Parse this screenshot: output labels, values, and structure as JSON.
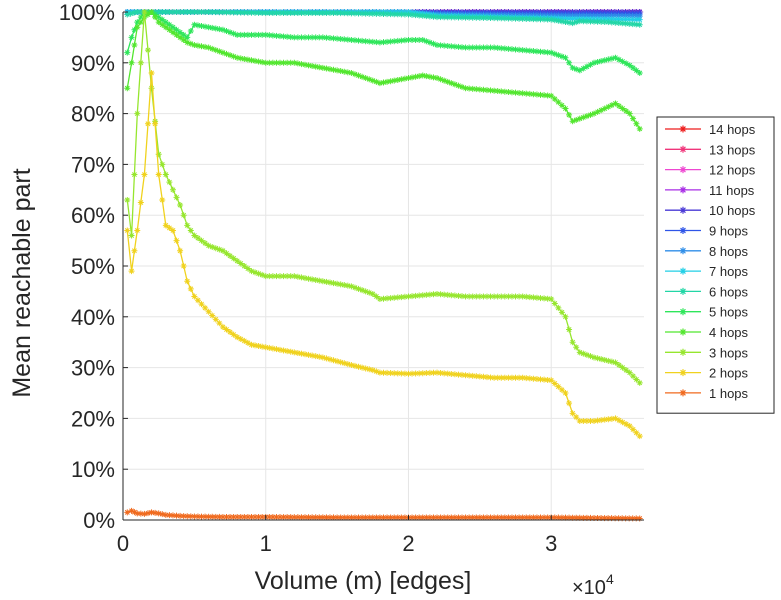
{
  "chart_data": {
    "type": "line",
    "title": "",
    "xlabel": "Volume (m) [edges]",
    "ylabel": "Mean reachable part",
    "x_exponent_base": "×10",
    "x_exponent": "4",
    "xlim": [
      0,
      3.65
    ],
    "ylim": [
      0,
      100
    ],
    "x_ticks": [
      0,
      1,
      2,
      3
    ],
    "x_tick_labels": [
      "0",
      "1",
      "2",
      "3"
    ],
    "y_ticks": [
      0,
      10,
      20,
      30,
      40,
      50,
      60,
      70,
      80,
      90,
      100
    ],
    "y_tick_labels": [
      "0%",
      "10%",
      "20%",
      "30%",
      "40%",
      "50%",
      "60%",
      "70%",
      "80%",
      "90%",
      "100%"
    ],
    "grid": true,
    "legend_position": "right",
    "series": [
      {
        "name": "14 hops",
        "color": "#ee1c1c",
        "x": [
          0.03,
          0.2,
          1.0,
          2.0,
          3.0,
          3.62
        ],
        "y": [
          100,
          100,
          100,
          100,
          100,
          100
        ]
      },
      {
        "name": "13 hops",
        "color": "#f0357a",
        "x": [
          0.03,
          0.2,
          1.0,
          2.0,
          3.0,
          3.62
        ],
        "y": [
          100,
          100,
          100,
          100,
          100,
          100
        ]
      },
      {
        "name": "12 hops",
        "color": "#ee48d2",
        "x": [
          0.03,
          0.2,
          1.0,
          2.0,
          3.0,
          3.62
        ],
        "y": [
          100,
          100,
          100,
          100,
          100,
          100
        ]
      },
      {
        "name": "11 hops",
        "color": "#a82ee6",
        "x": [
          0.03,
          0.2,
          1.0,
          2.0,
          3.0,
          3.62
        ],
        "y": [
          100,
          100,
          100,
          100,
          100,
          100
        ]
      },
      {
        "name": "10 hops",
        "color": "#4a3ad6",
        "x": [
          0.03,
          0.2,
          1.0,
          2.0,
          2.2,
          3.0,
          3.62
        ],
        "y": [
          100,
          100,
          100,
          100,
          100,
          100,
          100
        ]
      },
      {
        "name": "9 hops",
        "color": "#2f55e8",
        "x": [
          0.03,
          0.2,
          1.0,
          2.0,
          2.2,
          3.0,
          3.62
        ],
        "y": [
          100,
          100,
          100,
          100,
          99.8,
          99.7,
          99.6
        ]
      },
      {
        "name": "8 hops",
        "color": "#2f8ee8",
        "x": [
          0.03,
          0.2,
          1.0,
          2.0,
          2.2,
          3.0,
          3.62
        ],
        "y": [
          100,
          100,
          100,
          100,
          99.6,
          99.3,
          99.2
        ]
      },
      {
        "name": "7 hops",
        "color": "#22cfe6",
        "x": [
          0.03,
          0.2,
          1.0,
          2.0,
          2.2,
          3.0,
          3.1,
          3.62
        ],
        "y": [
          100,
          100,
          100,
          100,
          99.3,
          98.8,
          98.7,
          98.5
        ]
      },
      {
        "name": "6 hops",
        "color": "#22d6a6",
        "x": [
          0.03,
          0.1,
          0.2,
          0.3,
          0.6,
          1.0,
          1.5,
          2.0,
          2.2,
          2.6,
          3.0,
          3.15,
          3.2,
          3.4,
          3.62
        ],
        "y": [
          99.5,
          100,
          100,
          100,
          100,
          99.8,
          99.8,
          99.5,
          99.0,
          98.8,
          98.5,
          97.8,
          98.2,
          98.0,
          97.5
        ]
      },
      {
        "name": "5 hops",
        "color": "#2ee65a",
        "x": [
          0.03,
          0.06,
          0.1,
          0.15,
          0.2,
          0.25,
          0.3,
          0.35,
          0.4,
          0.45,
          0.5,
          0.6,
          0.7,
          0.8,
          1.0,
          1.2,
          1.4,
          1.6,
          1.8,
          2.0,
          2.1,
          2.2,
          2.4,
          2.6,
          2.8,
          3.0,
          3.1,
          3.15,
          3.2,
          3.3,
          3.45,
          3.55,
          3.62
        ],
        "y": [
          92,
          95,
          98,
          100,
          100,
          99,
          98,
          97,
          96,
          95,
          97.5,
          97,
          96.5,
          95.5,
          95.5,
          95,
          95,
          94.5,
          94,
          94.5,
          94.5,
          93.5,
          93,
          93,
          92.5,
          92,
          91,
          89,
          88.5,
          90,
          91,
          89.5,
          88
        ]
      },
      {
        "name": "4 hops",
        "color": "#52e62e",
        "x": [
          0.03,
          0.06,
          0.1,
          0.15,
          0.2,
          0.25,
          0.3,
          0.35,
          0.4,
          0.45,
          0.5,
          0.6,
          0.7,
          0.8,
          0.9,
          1.0,
          1.2,
          1.4,
          1.6,
          1.8,
          2.0,
          2.1,
          2.2,
          2.4,
          2.6,
          2.8,
          3.0,
          3.1,
          3.15,
          3.2,
          3.3,
          3.45,
          3.55,
          3.62
        ],
        "y": [
          85,
          90,
          97,
          99,
          100,
          98,
          97,
          96,
          95,
          94,
          93.5,
          93,
          92,
          91,
          90.5,
          90,
          90,
          89,
          88,
          86,
          87,
          87.5,
          87,
          85,
          84.5,
          84,
          83.5,
          81,
          78.5,
          79,
          80,
          82,
          80,
          77
        ]
      },
      {
        "name": "3 hops",
        "color": "#96e62e",
        "x": [
          0.03,
          0.06,
          0.1,
          0.15,
          0.2,
          0.25,
          0.3,
          0.35,
          0.4,
          0.45,
          0.5,
          0.6,
          0.7,
          0.8,
          0.9,
          1.0,
          1.2,
          1.4,
          1.6,
          1.75,
          1.8,
          2.0,
          2.2,
          2.4,
          2.6,
          2.8,
          3.0,
          3.1,
          3.15,
          3.2,
          3.3,
          3.45,
          3.55,
          3.62
        ],
        "y": [
          63,
          56,
          80,
          100,
          85,
          72,
          68,
          65,
          62,
          58,
          56,
          54,
          53,
          51,
          49,
          48,
          48,
          47,
          46,
          44.5,
          43.5,
          44,
          44.5,
          44,
          44,
          44,
          43.5,
          40,
          35,
          33,
          32,
          31,
          29,
          27
        ]
      },
      {
        "name": "2 hops",
        "color": "#f0d21e",
        "x": [
          0.03,
          0.06,
          0.1,
          0.15,
          0.2,
          0.25,
          0.3,
          0.35,
          0.4,
          0.45,
          0.5,
          0.6,
          0.7,
          0.8,
          0.9,
          1.0,
          1.2,
          1.4,
          1.6,
          1.75,
          1.8,
          2.0,
          2.2,
          2.4,
          2.6,
          2.8,
          3.0,
          3.1,
          3.15,
          3.2,
          3.3,
          3.45,
          3.55,
          3.62
        ],
        "y": [
          57,
          49,
          57,
          68,
          88,
          68,
          58,
          57,
          53,
          47,
          44,
          41,
          38,
          36,
          34.5,
          34,
          33,
          32,
          30.5,
          29.5,
          29,
          28.8,
          29,
          28.5,
          28,
          28,
          27.5,
          25,
          21,
          19.5,
          19.5,
          20,
          18.5,
          16.5
        ]
      },
      {
        "name": "1 hops",
        "color": "#f06a1e",
        "x": [
          0.03,
          0.06,
          0.1,
          0.15,
          0.2,
          0.25,
          0.3,
          0.4,
          0.5,
          0.7,
          1.0,
          1.5,
          2.0,
          2.5,
          3.0,
          3.3,
          3.62
        ],
        "y": [
          1.5,
          1.8,
          1.3,
          1.2,
          1.5,
          1.3,
          1.0,
          0.8,
          0.7,
          0.6,
          0.6,
          0.5,
          0.5,
          0.5,
          0.5,
          0.4,
          0.3
        ]
      }
    ]
  }
}
